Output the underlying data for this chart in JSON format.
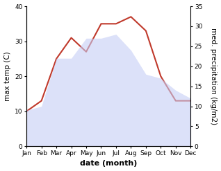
{
  "months": [
    "Jan",
    "Feb",
    "Mar",
    "Apr",
    "May",
    "Jun",
    "Jul",
    "Aug",
    "Sep",
    "Oct",
    "Nov",
    "Dec"
  ],
  "temperature": [
    10,
    13,
    25,
    31,
    27,
    35,
    35,
    37,
    33,
    20,
    13,
    13
  ],
  "precipitation": [
    9,
    10,
    22,
    22,
    27,
    27,
    28,
    24,
    18,
    17,
    14,
    12
  ],
  "temp_ylim": [
    0,
    40
  ],
  "temp_yticks": [
    0,
    10,
    20,
    30,
    40
  ],
  "precip_ylim": [
    0,
    35
  ],
  "precip_yticks": [
    0,
    5,
    10,
    15,
    20,
    25,
    30,
    35
  ],
  "temp_color": "#c0392b",
  "precip_fill_color": "#c5cdf5",
  "precip_fill_alpha": 0.6,
  "ylabel_left": "max temp (C)",
  "ylabel_right": "med. precipitation (kg/m2)",
  "xlabel": "date (month)",
  "bg_color": "#ffffff",
  "temp_linewidth": 1.5,
  "xlabel_fontsize": 8,
  "xlabel_fontweight": "bold",
  "ylabel_fontsize": 7.5,
  "tick_fontsize": 6.5
}
